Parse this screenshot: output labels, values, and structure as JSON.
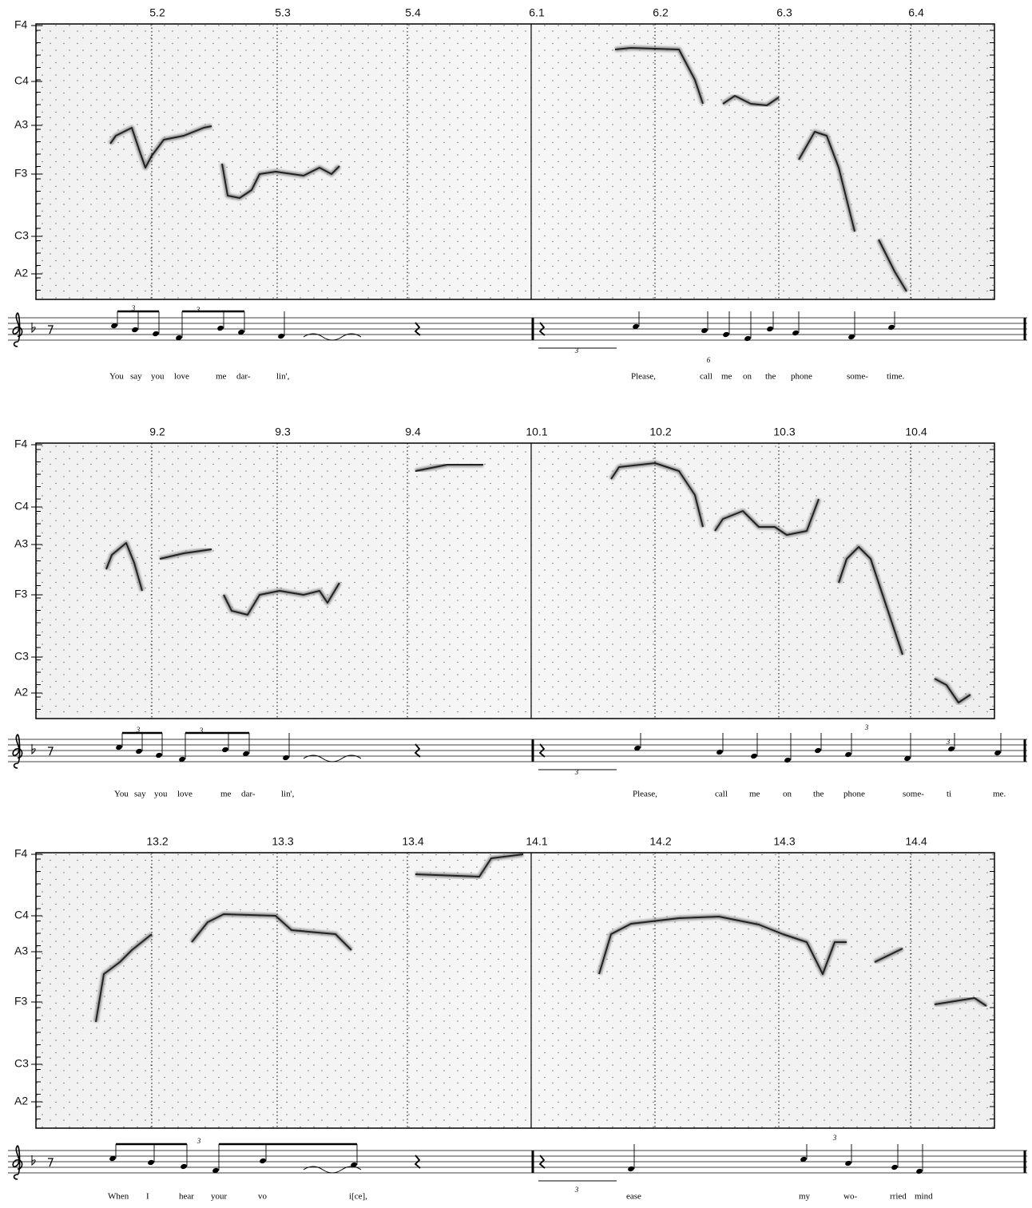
{
  "systems": [
    {
      "beats": [
        "5.2",
        "5.3",
        "5.4",
        "6.1",
        "6.2",
        "6.3",
        "6.4"
      ],
      "pitch_labels": [
        "F4",
        "C4",
        "A3",
        "F3",
        "C3",
        "A2"
      ],
      "tuplets": [
        "3",
        "3",
        "3",
        "6"
      ],
      "lyrics": [
        "You",
        "say",
        "you",
        "love",
        "me",
        "dar-",
        "lin',",
        "Please,",
        "call",
        "me",
        "on",
        "the",
        "phone",
        "some-",
        "time."
      ]
    },
    {
      "beats": [
        "9.2",
        "9.3",
        "9.4",
        "10.1",
        "10.2",
        "10.3",
        "10.4"
      ],
      "pitch_labels": [
        "F4",
        "C4",
        "A3",
        "F3",
        "C3",
        "A2"
      ],
      "tuplets": [
        "3",
        "3",
        "3",
        "3",
        "3"
      ],
      "lyrics": [
        "You",
        "say",
        "you",
        "love",
        "me",
        "dar-",
        "lin',",
        "Please,",
        "call",
        "me",
        "on",
        "the",
        "phone",
        "some-",
        "ti",
        "me."
      ]
    },
    {
      "beats": [
        "13.2",
        "13.3",
        "13.4",
        "14.1",
        "14.2",
        "14.3",
        "14.4"
      ],
      "pitch_labels": [
        "F4",
        "C4",
        "A3",
        "F3",
        "C3",
        "A2"
      ],
      "tuplets": [
        "3",
        "3",
        "3"
      ],
      "lyrics": [
        "When",
        "I",
        "hear",
        "your",
        "vo",
        "i[ce],",
        "ease",
        "my",
        "wo-",
        "rried",
        "mind"
      ]
    }
  ]
}
